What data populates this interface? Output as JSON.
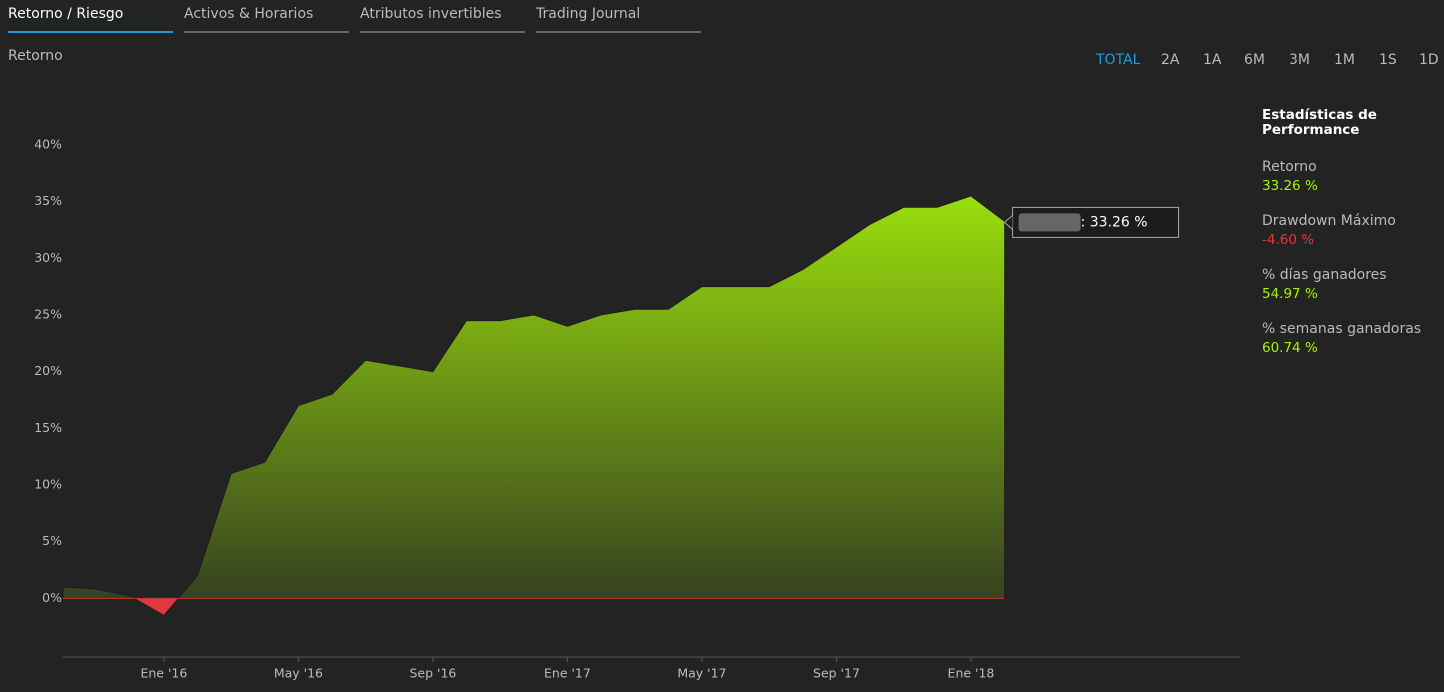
{
  "tabs": [
    "Retorno / Riesgo",
    "Activos & Horarios",
    "Atributos invertibles",
    "Trading Journal"
  ],
  "section_title": "Retorno",
  "ranges": [
    "TOTAL",
    "2A",
    "1A",
    "6M",
    "3M",
    "1M",
    "1S",
    "1D"
  ],
  "stats": {
    "title": "Estadísticas de Performance",
    "items": [
      {
        "label": "Retorno",
        "value": "33.26 %",
        "color": "#a6f20a"
      },
      {
        "label": "Drawdown Máximo",
        "value": "-4.60 %",
        "color": "#f0323c"
      },
      {
        "label": "% días ganadores",
        "value": "54.97 %",
        "color": "#a6f20a"
      },
      {
        "label": "% semanas ganadoras",
        "value": "60.74 %",
        "color": "#a6f20a"
      }
    ]
  },
  "chart_data": {
    "type": "area",
    "x": [
      "2015-10",
      "2015-11",
      "2015-12",
      "2016-01",
      "2016-02",
      "2016-03",
      "2016-04",
      "2016-05",
      "2016-06",
      "2016-07",
      "2016-08",
      "2016-09",
      "2016-10",
      "2016-11",
      "2016-12",
      "2017-01",
      "2017-02",
      "2017-03",
      "2017-04",
      "2017-05",
      "2017-06",
      "2017-07",
      "2017-08",
      "2017-09",
      "2017-10",
      "2017-11",
      "2017-12",
      "2018-01",
      "2018-02"
    ],
    "values": [
      1,
      0.8,
      0.2,
      -1.5,
      2,
      11,
      12,
      17,
      18,
      21,
      20.5,
      20,
      24.5,
      24.5,
      25,
      24,
      25,
      25.5,
      25.5,
      27.5,
      27.5,
      27.5,
      29,
      31,
      33,
      34.5,
      34.5,
      35.5,
      33.26
    ],
    "color": "#a6f20a",
    "negative_color": "#e0393e",
    "tooltip": ": 33.26 %",
    "xlim": [
      "2015-10",
      "2018-09"
    ],
    "xticks": [
      {
        "value": "2016-01",
        "label": "Ene '16"
      },
      {
        "value": "2016-05",
        "label": "May '16"
      },
      {
        "value": "2016-09",
        "label": "Sep '16"
      },
      {
        "value": "2017-01",
        "label": "Ene '17"
      },
      {
        "value": "2017-05",
        "label": "May '17"
      },
      {
        "value": "2017-09",
        "label": "Sep '17"
      },
      {
        "value": "2018-01",
        "label": "Ene '18"
      }
    ],
    "ylim": [
      -5,
      40
    ],
    "yticks": [
      {
        "value": 0,
        "label": "0%"
      },
      {
        "value": 5,
        "label": "5%"
      },
      {
        "value": 10,
        "label": "10%"
      },
      {
        "value": 15,
        "label": "15%"
      },
      {
        "value": 20,
        "label": "20%"
      },
      {
        "value": 25,
        "label": "25%"
      },
      {
        "value": 30,
        "label": "30%"
      },
      {
        "value": 35,
        "label": "35%"
      },
      {
        "value": 40,
        "label": "40%"
      }
    ]
  }
}
